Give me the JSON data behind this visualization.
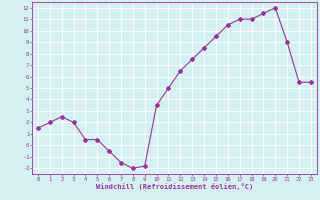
{
  "x": [
    0,
    1,
    2,
    3,
    4,
    5,
    6,
    7,
    8,
    9,
    10,
    11,
    12,
    13,
    14,
    15,
    16,
    17,
    18,
    19,
    20,
    21,
    22,
    23
  ],
  "y": [
    1.5,
    2.0,
    2.5,
    2.0,
    0.5,
    0.5,
    -0.5,
    -1.5,
    -2.0,
    -1.8,
    3.5,
    5.0,
    6.5,
    7.5,
    8.5,
    9.5,
    10.5,
    11.0,
    11.0,
    11.5,
    12.0,
    9.0,
    5.5,
    5.5
  ],
  "xlim": [
    -0.5,
    23.5
  ],
  "ylim": [
    -2.5,
    12.5
  ],
  "xticks": [
    0,
    1,
    2,
    3,
    4,
    5,
    6,
    7,
    8,
    9,
    10,
    11,
    12,
    13,
    14,
    15,
    16,
    17,
    18,
    19,
    20,
    21,
    22,
    23
  ],
  "yticks": [
    -2,
    -1,
    0,
    1,
    2,
    3,
    4,
    5,
    6,
    7,
    8,
    9,
    10,
    11,
    12
  ],
  "xlabel": "Windchill (Refroidissement éolien,°C)",
  "line_color": "#993399",
  "marker": "D",
  "marker_size": 2,
  "bg_color": "#d5f0f0",
  "grid_color": "#ffffff",
  "tick_color": "#993399",
  "label_color": "#993399"
}
